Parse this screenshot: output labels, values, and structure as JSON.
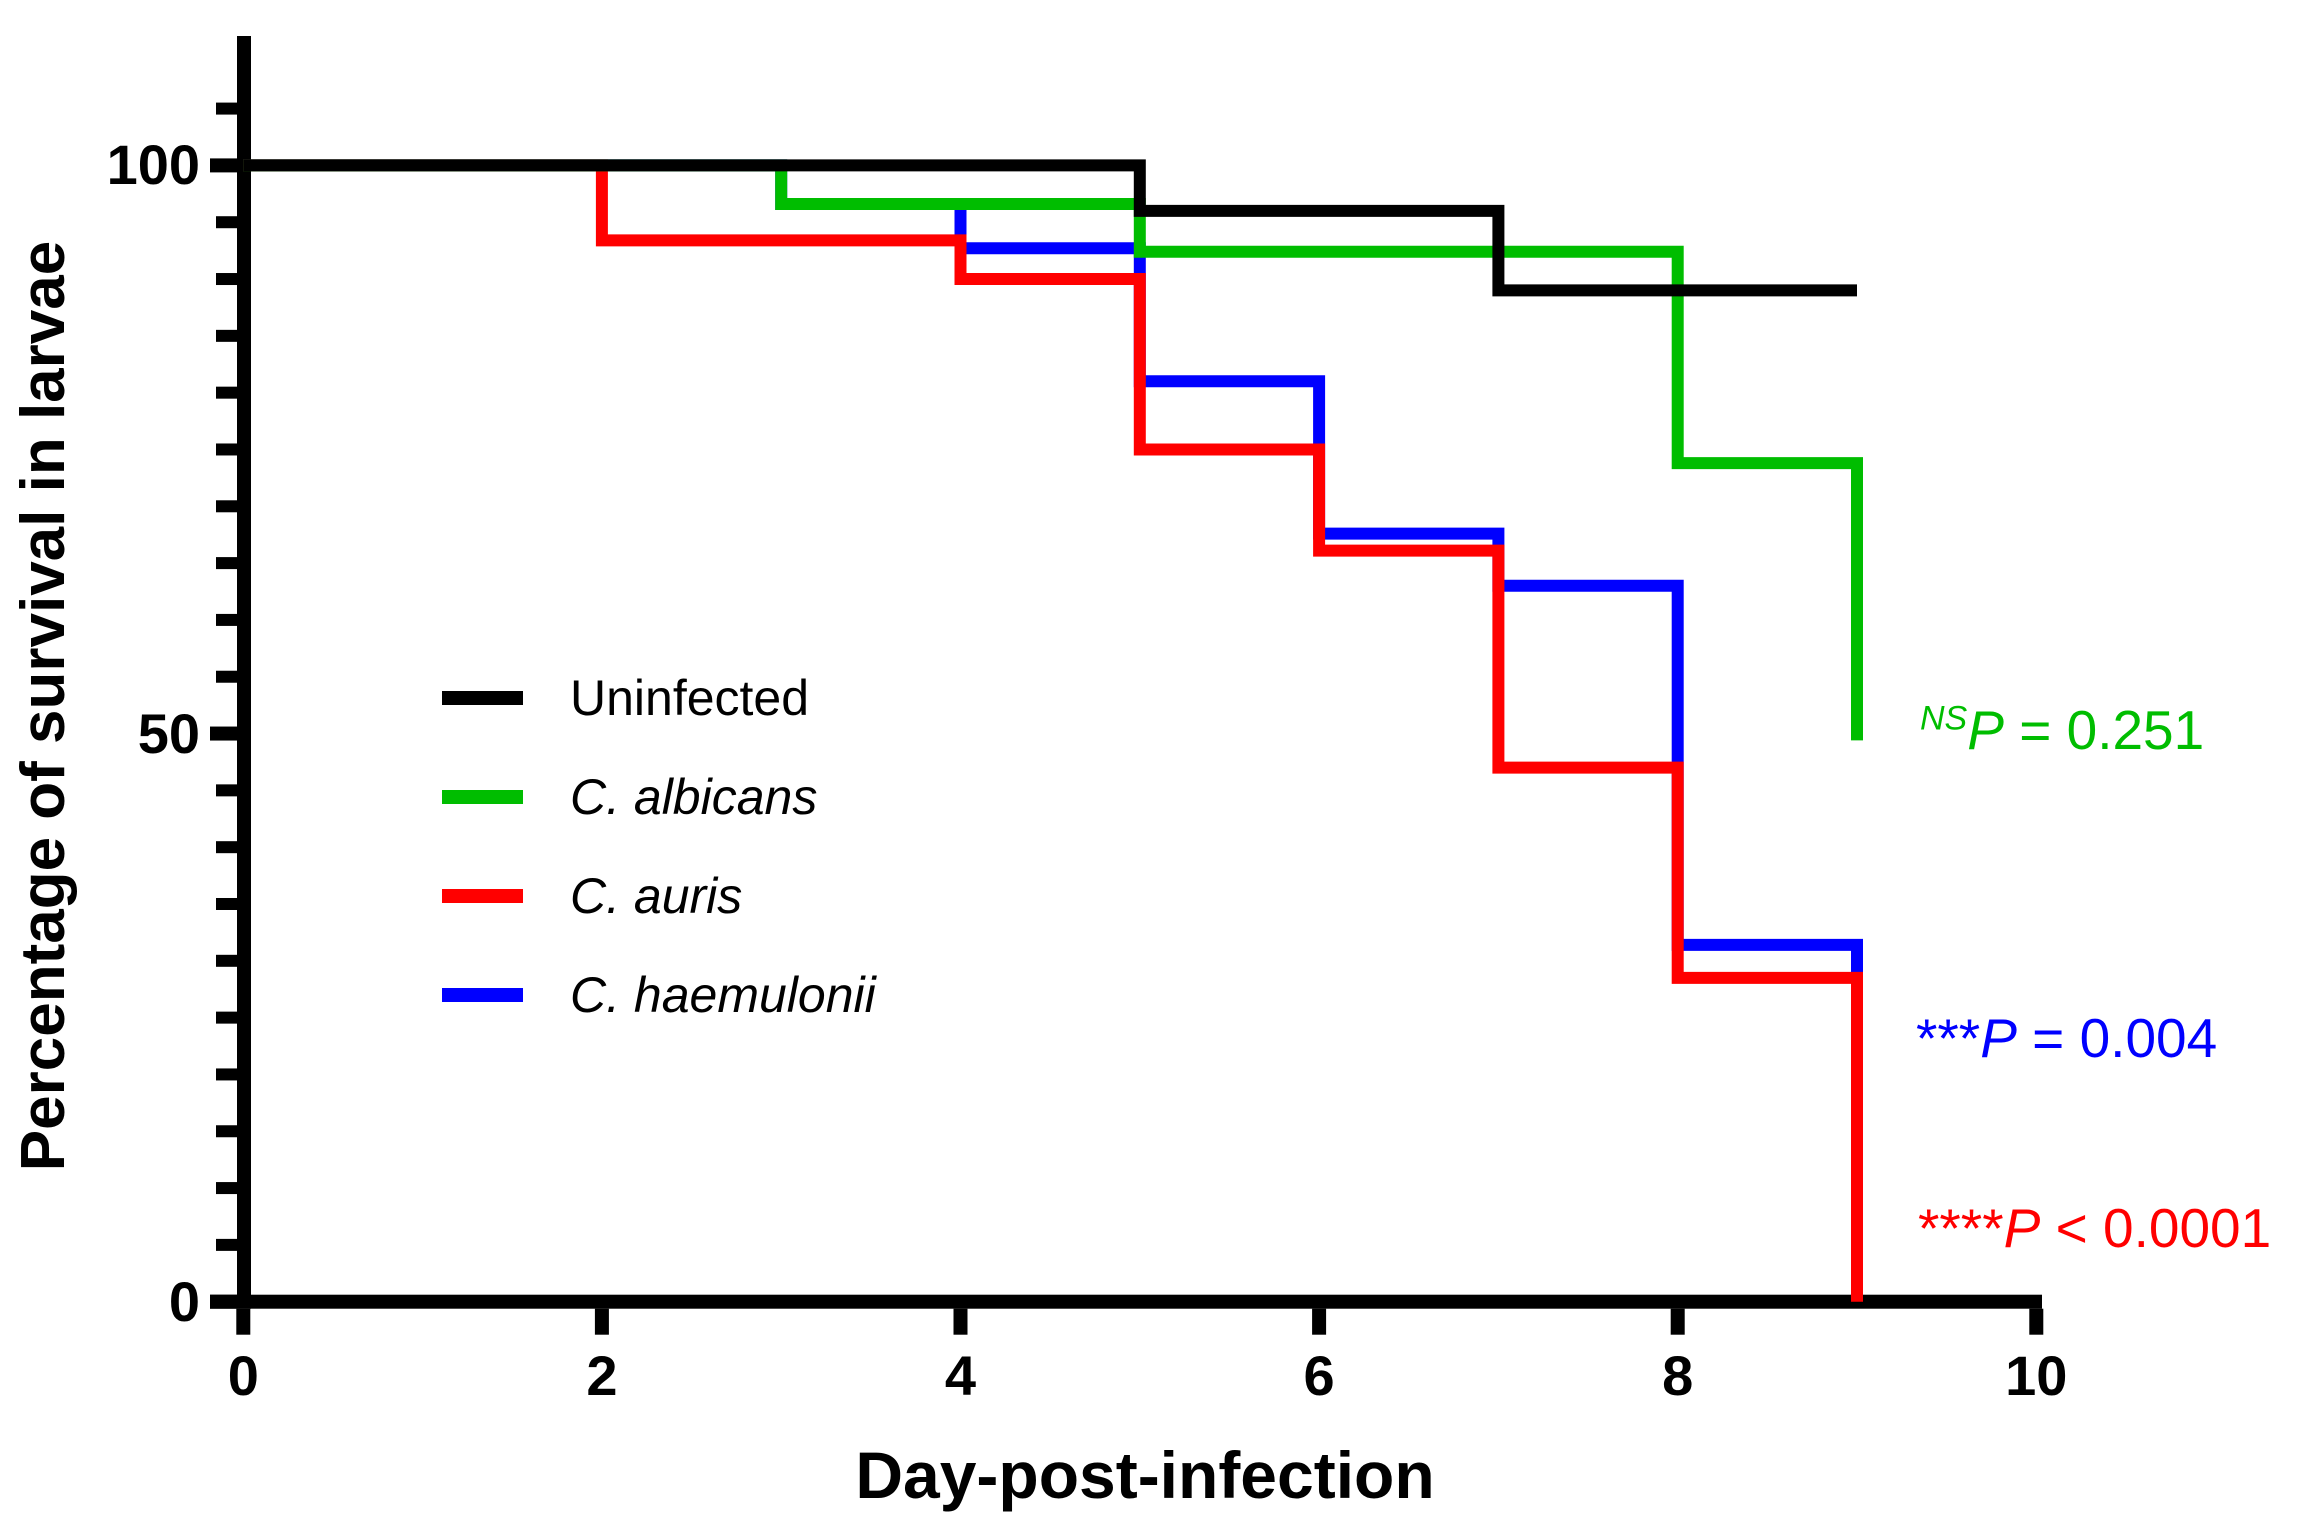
{
  "chart_data": {
    "type": "line",
    "subtype": "kaplan-meier-survival-steps",
    "title": "",
    "xlabel": "Day-post-infection",
    "ylabel": "Percentage of survival in larvae",
    "xlim": [
      0,
      10
    ],
    "ylim": [
      0,
      100
    ],
    "x_ticks": [
      0,
      2,
      4,
      6,
      8,
      10
    ],
    "y_major_ticks": [
      0,
      50,
      100
    ],
    "y_minor_tick_step": 5,
    "y_axis_extends_to": 105,
    "grid": false,
    "legend_position": "inside-middle-left",
    "series": [
      {
        "name": "Uninfected",
        "color": "#000000",
        "italic": false,
        "points": [
          [
            0,
            100
          ],
          [
            5,
            100
          ],
          [
            5,
            96
          ],
          [
            7,
            96
          ],
          [
            7,
            89
          ],
          [
            9,
            89
          ]
        ]
      },
      {
        "name": "C. albicans",
        "color": "#00BD00",
        "italic": true,
        "points": [
          [
            0,
            100
          ],
          [
            3,
            100
          ],
          [
            3,
            96.6
          ],
          [
            5,
            96.6
          ],
          [
            5,
            92.4
          ],
          [
            8,
            92.4
          ],
          [
            8,
            73.8
          ],
          [
            9,
            73.8
          ],
          [
            9,
            49.4
          ]
        ]
      },
      {
        "name": "C. auris",
        "color": "#FF0000",
        "italic": true,
        "points": [
          [
            0,
            100
          ],
          [
            2,
            100
          ],
          [
            2,
            93.4
          ],
          [
            4,
            93.4
          ],
          [
            4,
            90
          ],
          [
            5,
            90
          ],
          [
            5,
            75
          ],
          [
            6,
            75
          ],
          [
            6,
            66.1
          ],
          [
            7,
            66.1
          ],
          [
            7,
            47
          ],
          [
            8,
            47
          ],
          [
            8,
            28.5
          ],
          [
            9,
            28.5
          ],
          [
            9,
            0
          ]
        ]
      },
      {
        "name": "C. haemulonii",
        "color": "#0000FF",
        "italic": true,
        "points": [
          [
            0,
            100
          ],
          [
            3,
            100
          ],
          [
            3,
            96.6
          ],
          [
            4,
            96.6
          ],
          [
            4,
            92.7
          ],
          [
            5,
            92.7
          ],
          [
            5,
            81
          ],
          [
            6,
            81
          ],
          [
            6,
            67.6
          ],
          [
            7,
            67.6
          ],
          [
            7,
            63
          ],
          [
            8,
            63
          ],
          [
            8,
            31.4
          ],
          [
            9,
            31.4
          ],
          [
            9,
            28.5
          ]
        ]
      }
    ],
    "draw_order": [
      3,
      2,
      1,
      0
    ],
    "annotations": [
      {
        "prefix": "NS",
        "p": "P",
        "rest": " = 0.251",
        "color": "#00BD00",
        "superscript_prefix": true
      },
      {
        "prefix": "***",
        "p": "P",
        "rest": " = 0.004",
        "color": "#0000FF",
        "superscript_prefix": false
      },
      {
        "prefix": "****",
        "p": "P",
        "rest": " < 0.0001",
        "color": "#FF0000",
        "superscript_prefix": false
      }
    ]
  }
}
